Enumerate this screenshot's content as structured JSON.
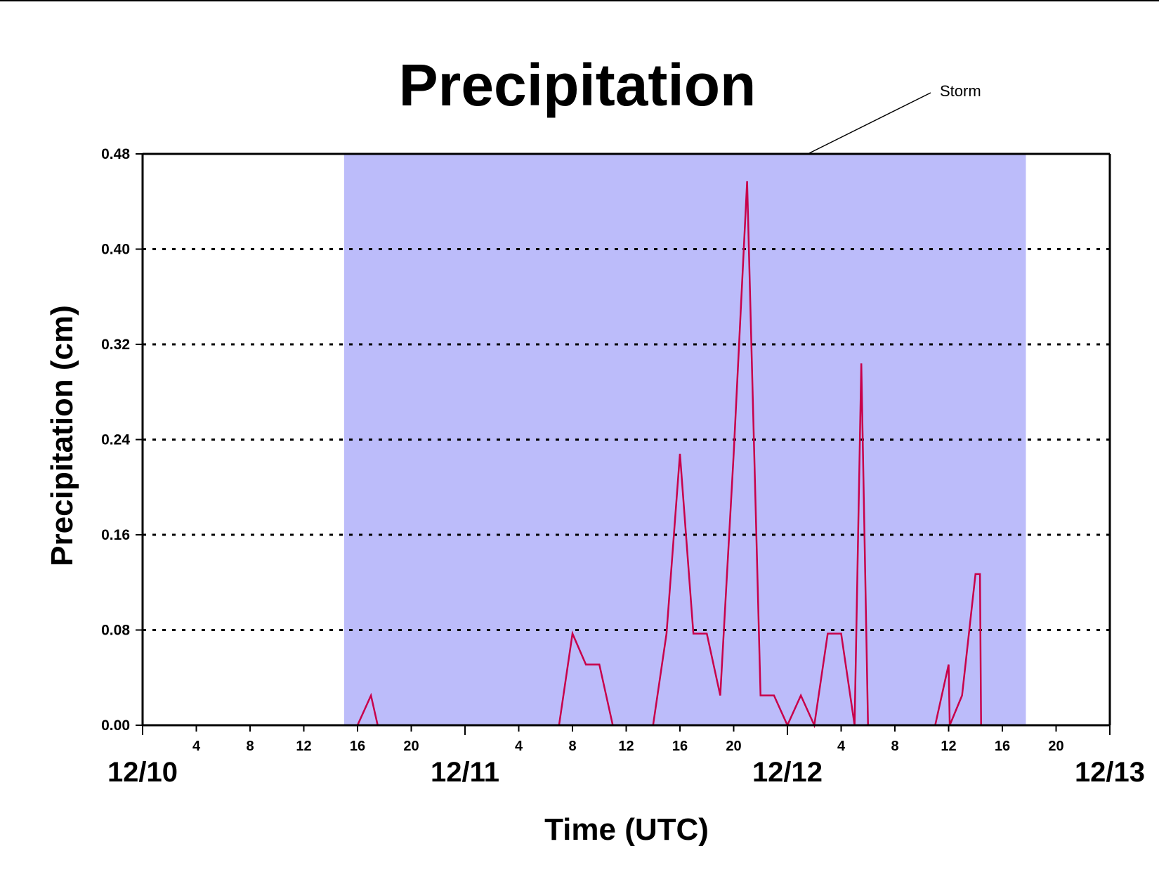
{
  "colors": {
    "storm_band": "#bcbcfa",
    "series_line": "#c8004a",
    "axis": "#000000",
    "grid": "#000000"
  },
  "chart_data": {
    "type": "line",
    "title": "Precipitation",
    "xlabel": "Time (UTC)",
    "ylabel": "Precipitation (cm)",
    "ylim": [
      0,
      0.48
    ],
    "yticks": [
      "0.00",
      "0.08",
      "0.16",
      "0.24",
      "0.32",
      "0.40",
      "0.48"
    ],
    "xlim": [
      "12/10 00:00",
      "12/13 00:00"
    ],
    "xtick_hour_labels": [
      "",
      "4",
      "8",
      "12",
      "16",
      "20",
      "",
      "4",
      "8",
      "12",
      "16",
      "20",
      "",
      "4",
      "8",
      "12",
      "16",
      "20",
      ""
    ],
    "day_labels": [
      "12/10",
      "12/11",
      "12/12",
      "12/13"
    ],
    "grid": "horizontal dotted",
    "shaded_region": {
      "label": "Storm",
      "start": "12/10 15:00",
      "end": "12/12 17:45"
    },
    "series": [
      {
        "x": [
          "12/10 00:00",
          "12/10 16:00",
          "12/10 17:00",
          "12/10 17:30",
          "12/11 07:00",
          "12/11 08:00",
          "12/11 09:00",
          "12/11 10:00",
          "12/11 11:00",
          "12/11 14:00",
          "12/11 15:00",
          "12/11 16:00",
          "12/11 17:00",
          "12/11 18:00",
          "12/11 19:00",
          "12/11 20:00",
          "12/11 21:00",
          "12/11 22:00",
          "12/11 23:00",
          "12/12 00:00",
          "12/12 01:00",
          "12/12 02:00",
          "12/12 03:00",
          "12/12 04:00",
          "12/12 05:00",
          "12/12 05:30",
          "12/12 06:00",
          "12/12 06:05",
          "12/12 11:00",
          "12/12 12:00",
          "12/12 12:05",
          "12/12 13:00",
          "12/12 14:00",
          "12/12 14:20",
          "12/12 14:25",
          "12/13 00:00"
        ],
        "values": [
          0,
          0,
          0.025,
          0,
          0,
          0.077,
          0.051,
          0.051,
          0,
          0,
          0.077,
          0.228,
          0.077,
          0.077,
          0.025,
          0.228,
          0.457,
          0.025,
          0.025,
          0,
          0.025,
          0,
          0.077,
          0.077,
          0,
          0.304,
          0,
          0,
          0,
          0.051,
          0,
          0.025,
          0.127,
          0.127,
          0,
          0
        ]
      }
    ]
  }
}
